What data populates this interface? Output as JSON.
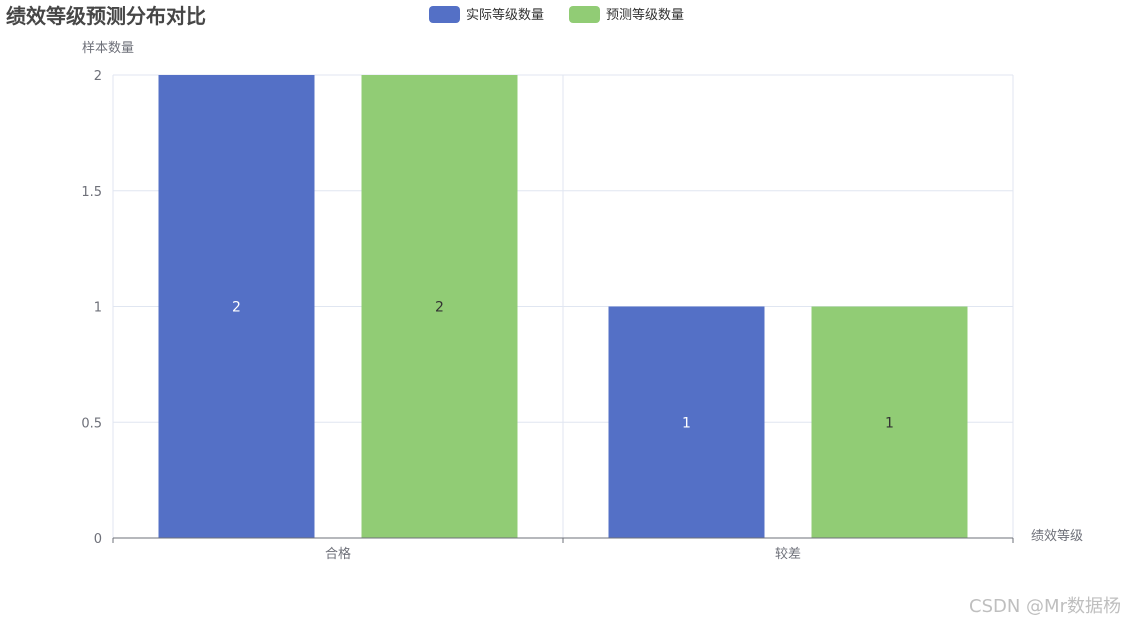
{
  "chart_data": {
    "type": "bar",
    "title": "绩效等级预测分布对比",
    "xlabel": "绩效等级",
    "ylabel": "样本数量",
    "categories": [
      "合格",
      "较差"
    ],
    "series": [
      {
        "name": "实际等级数量",
        "values": [
          2,
          1
        ],
        "color": "#5470c6"
      },
      {
        "name": "预测等级数量",
        "values": [
          2,
          1
        ],
        "color": "#91cc75"
      }
    ],
    "ylim": [
      0,
      2
    ],
    "yticks": [
      "0",
      "0.5",
      "1",
      "1.5",
      "2"
    ],
    "legend_position": "top-center",
    "grid": true
  },
  "watermark": "CSDN @Mr数据杨"
}
